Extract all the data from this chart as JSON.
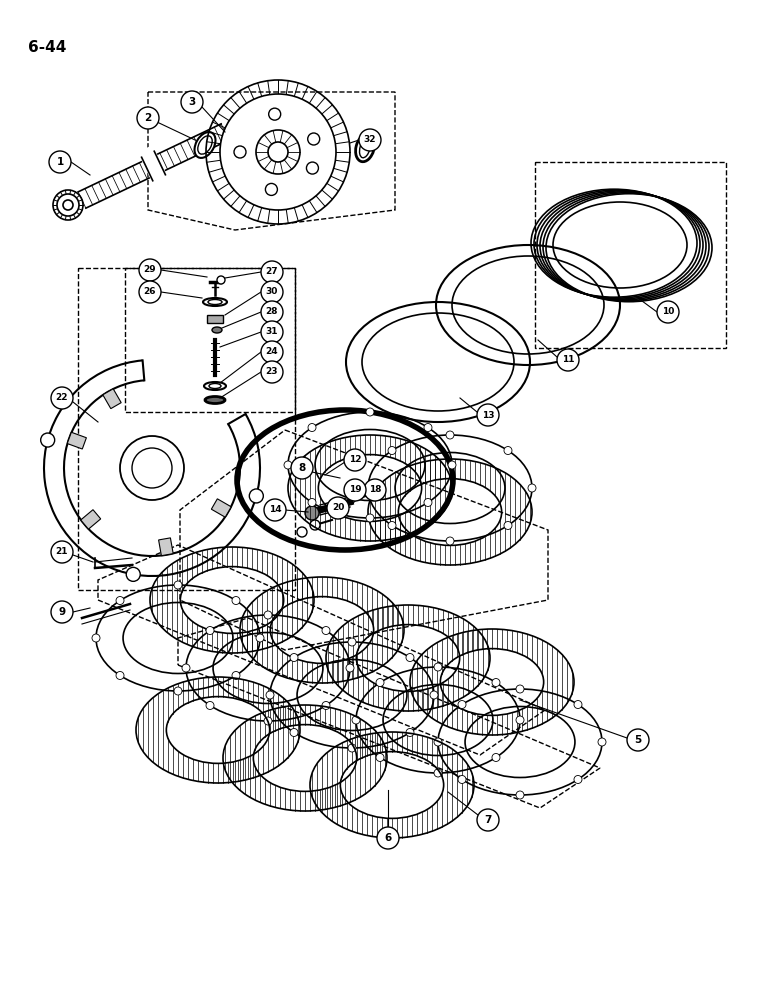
{
  "page_label": "6-44",
  "bg": "#ffffff",
  "lc": "#000000",
  "figsize": [
    7.72,
    10.0
  ],
  "dpi": 100
}
